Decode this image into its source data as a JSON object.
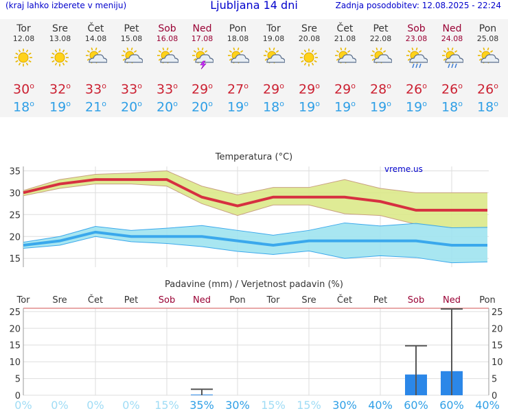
{
  "header": {
    "left_note": "(kraj lahko izberete v meniju)",
    "title": "Ljubljana 14 dni",
    "updated": "Zadnja posodobitev: 12.08.2025 - 22:24"
  },
  "colors": {
    "max_line": "#d63040",
    "max_band": "#dce98a",
    "min_line": "#3aa8ec",
    "min_band": "#9fe3f0",
    "precip_bar": "#2b87e8",
    "weekend_text": "#990033",
    "prob_low": "#9fdcf5",
    "prob_high": "#2f9fe6"
  },
  "days": [
    {
      "name": "Tor",
      "date": "12.08",
      "weekend": false,
      "icon": "sun-icon",
      "max": "30",
      "min": "18"
    },
    {
      "name": "Sre",
      "date": "13.08",
      "weekend": false,
      "icon": "sun-icon",
      "max": "32",
      "min": "19"
    },
    {
      "name": "Čet",
      "date": "14.08",
      "weekend": false,
      "icon": "sun-cloud-icon",
      "max": "33",
      "min": "21"
    },
    {
      "name": "Pet",
      "date": "15.08",
      "weekend": false,
      "icon": "sun-cloud-icon",
      "max": "33",
      "min": "20"
    },
    {
      "name": "Sob",
      "date": "16.08",
      "weekend": true,
      "icon": "sun-cloud-icon",
      "max": "33",
      "min": "20"
    },
    {
      "name": "Ned",
      "date": "17.08",
      "weekend": true,
      "icon": "sun-cloud-thunder-icon",
      "max": "29",
      "min": "20"
    },
    {
      "name": "Pon",
      "date": "18.08",
      "weekend": false,
      "icon": "sun-cloud-icon",
      "max": "27",
      "min": "19"
    },
    {
      "name": "Tor",
      "date": "19.08",
      "weekend": false,
      "icon": "sun-cloud-icon",
      "max": "29",
      "min": "18"
    },
    {
      "name": "Sre",
      "date": "20.08",
      "weekend": false,
      "icon": "sun-icon",
      "max": "29",
      "min": "19"
    },
    {
      "name": "Čet",
      "date": "21.08",
      "weekend": false,
      "icon": "sun-cloud-icon",
      "max": "29",
      "min": "19"
    },
    {
      "name": "Pet",
      "date": "22.08",
      "weekend": false,
      "icon": "sun-cloud-icon",
      "max": "28",
      "min": "19"
    },
    {
      "name": "Sob",
      "date": "23.08",
      "weekend": true,
      "icon": "sun-cloud-rain-icon",
      "max": "26",
      "min": "19"
    },
    {
      "name": "Ned",
      "date": "24.08",
      "weekend": true,
      "icon": "sun-cloud-rain-icon",
      "max": "26",
      "min": "18"
    },
    {
      "name": "Pon",
      "date": "25.08",
      "weekend": false,
      "icon": "sun-cloud-icon",
      "max": "26",
      "min": "18"
    }
  ],
  "degree_symbol": "o",
  "chart_data": [
    {
      "type": "line",
      "title": "Temperatura (°C)",
      "watermark": "vreme.us",
      "x": [
        "12.08",
        "13.08",
        "14.08",
        "15.08",
        "16.08",
        "17.08",
        "18.08",
        "19.08",
        "20.08",
        "21.08",
        "22.08",
        "23.08",
        "24.08",
        "25.08"
      ],
      "ylim": [
        13,
        36
      ],
      "yticks": [
        15,
        20,
        25,
        30,
        35
      ],
      "series": [
        {
          "role": "max-mean",
          "values": [
            30,
            32,
            33,
            33,
            33,
            29,
            27,
            29,
            29,
            29,
            28,
            26,
            26,
            26
          ]
        },
        {
          "role": "max-upper",
          "values": [
            30.5,
            33,
            34.2,
            34.5,
            35,
            31.5,
            29.5,
            31.2,
            31.2,
            33,
            31,
            30,
            30,
            30
          ]
        },
        {
          "role": "max-lower",
          "values": [
            29.3,
            31,
            32,
            32,
            31.5,
            27.5,
            24.8,
            27.2,
            27.2,
            25.2,
            24.8,
            22.8,
            22,
            22
          ]
        },
        {
          "role": "min-mean",
          "values": [
            18,
            19,
            21,
            20,
            20,
            20,
            19,
            18,
            19,
            19,
            19,
            19,
            18,
            18
          ]
        },
        {
          "role": "min-upper",
          "values": [
            18.7,
            20,
            22.3,
            21.4,
            21.9,
            22.5,
            21.4,
            20.3,
            21.4,
            23.1,
            22.4,
            23,
            22,
            22.1
          ]
        },
        {
          "role": "min-lower",
          "values": [
            17.3,
            18,
            20,
            18.8,
            18.4,
            17.7,
            16.6,
            15.9,
            16.7,
            15,
            15.6,
            15.2,
            14,
            14.2
          ]
        }
      ],
      "grid": true
    },
    {
      "type": "bar",
      "title": "Padavine (mm) / Verjetnost padavin (%)",
      "categories": [
        "Tor",
        "Sre",
        "Čet",
        "Pet",
        "Sob",
        "Ned",
        "Pon",
        "Tor",
        "Sre",
        "Čet",
        "Pet",
        "Sob",
        "Ned",
        "Pon"
      ],
      "weekend": [
        false,
        false,
        false,
        false,
        true,
        true,
        false,
        false,
        false,
        false,
        false,
        true,
        true,
        false
      ],
      "ylim": [
        0,
        26
      ],
      "yticks": [
        0,
        5,
        10,
        15,
        20,
        25
      ],
      "precip_mm": [
        0,
        0,
        0,
        0,
        0,
        0.2,
        0,
        0,
        0,
        0,
        0,
        6.2,
        7.2,
        0
      ],
      "precip_max_mm": [
        0,
        0,
        0,
        0,
        0,
        1.8,
        0,
        0,
        0,
        0,
        0,
        14.8,
        25.8,
        0
      ],
      "probability": [
        "0%",
        "0%",
        "0%",
        "0%",
        "15%",
        "35%",
        "30%",
        "15%",
        "15%",
        "30%",
        "40%",
        "60%",
        "60%",
        "40%"
      ],
      "grid": true
    }
  ]
}
